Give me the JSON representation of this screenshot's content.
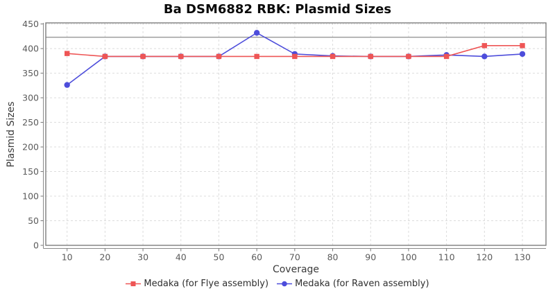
{
  "chart_data": {
    "type": "line",
    "title": "Ba DSM6882 RBK: Plasmid Sizes",
    "xlabel": "Coverage",
    "ylabel": "Plasmid Sizes",
    "x": [
      10,
      20,
      30,
      40,
      50,
      60,
      70,
      80,
      90,
      100,
      110,
      120,
      130
    ],
    "series": [
      {
        "name": "Medaka (for Flye assembly)",
        "color": "#ee5555",
        "marker": "square",
        "values": [
          390,
          384,
          384,
          384,
          384,
          384,
          384,
          384,
          384,
          384,
          384,
          406,
          406
        ]
      },
      {
        "name": "Medaka (for Raven assembly)",
        "color": "#4d4ddb",
        "marker": "circle",
        "values": [
          326,
          384,
          384,
          384,
          384,
          432,
          389,
          385,
          384,
          384,
          387,
          384,
          389
        ]
      }
    ],
    "yticks": [
      0,
      50,
      100,
      150,
      200,
      250,
      300,
      350,
      400,
      450
    ],
    "ylim": [
      0,
      450
    ],
    "reference_line": {
      "y": 423,
      "color": "#8c8c8c"
    },
    "grid": true,
    "grid_color": "#dcdcdc",
    "frame_color": "#7d7d7d",
    "legend_position": "bottom"
  }
}
